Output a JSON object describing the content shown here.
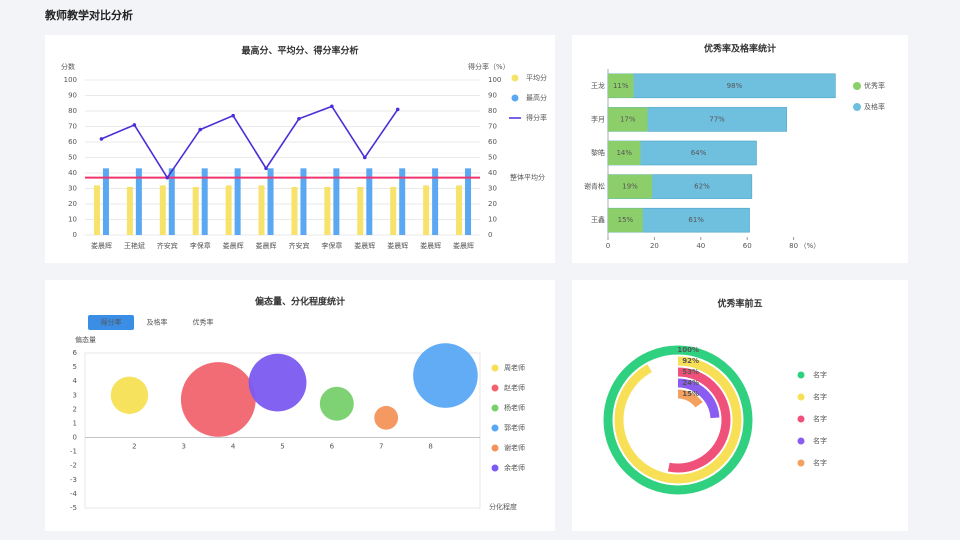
{
  "header": {
    "title": "教师教学对比分析"
  },
  "chart_data": [
    {
      "type": "combo",
      "title": "最高分、平均分、得分率分析",
      "y_label": "分数",
      "y2_label": "得分率（%）",
      "categories": [
        "娄晨辉",
        "王艳斌",
        "齐安宾",
        "李保章",
        "娄晨辉",
        "娄晨辉",
        "齐安宾",
        "李保章",
        "娄晨辉",
        "娄晨辉",
        "娄晨辉",
        "娄晨辉"
      ],
      "ylim": [
        0,
        100
      ],
      "yticks": [
        0,
        10,
        20,
        30,
        40,
        50,
        60,
        70,
        80,
        90,
        100
      ],
      "y2lim": [
        0,
        100
      ],
      "y2ticks": [
        0,
        10,
        20,
        30,
        40,
        50,
        60,
        70,
        80,
        90,
        100
      ],
      "grid": true,
      "legend": "right",
      "series": [
        {
          "name": "平均分",
          "kind": "bar",
          "color": "#f7e26b",
          "values": [
            32,
            31,
            32,
            31,
            32,
            32,
            31,
            31,
            31,
            31,
            32,
            32
          ]
        },
        {
          "name": "最高分",
          "kind": "bar",
          "color": "#5aa8f2",
          "values": [
            43,
            43,
            43,
            43,
            43,
            43,
            43,
            43,
            43,
            43,
            43,
            43
          ]
        },
        {
          "name": "得分率",
          "kind": "line",
          "axis": "y2",
          "color": "#4a2fd8",
          "values": [
            62,
            71,
            37,
            68,
            77,
            43,
            75,
            83,
            50,
            81,
            null,
            null
          ]
        }
      ],
      "reference_line": {
        "label": "整体平均分",
        "value": 37,
        "color": "#f0356f"
      }
    },
    {
      "type": "hbar",
      "title": "优秀率及格率统计",
      "categories": [
        "王龙",
        "李月",
        "黎皓",
        "谢青松",
        "王鑫"
      ],
      "xlim": [
        0,
        100
      ],
      "xticks": [
        0,
        20,
        40,
        60,
        80
      ],
      "x_unit": "（%）",
      "legend": "right",
      "series": [
        {
          "name": "优秀率",
          "color": "#8ccf6a",
          "values": [
            11,
            17,
            14,
            19,
            15
          ],
          "value_labels": [
            "11%",
            "17%",
            "14%",
            "19%",
            "15%"
          ]
        },
        {
          "name": "及格率",
          "color": "#6fbfdf",
          "values": [
            98,
            77,
            64,
            62,
            61
          ],
          "value_labels": [
            "98%",
            "77%",
            "64%",
            "62%",
            "61%"
          ]
        }
      ]
    },
    {
      "type": "bubble",
      "title": "偏态量、分化程度统计",
      "tabs": [
        "得分率",
        "及格率",
        "优秀率"
      ],
      "active_tab": 0,
      "y_label": "偏态量",
      "x_label": "分化程度",
      "xlim": [
        1,
        9
      ],
      "xticks": [
        2,
        3,
        4,
        5,
        6,
        7,
        8
      ],
      "ylim": [
        -5,
        6
      ],
      "yticks": [
        -5,
        -4,
        -3,
        -2,
        -1,
        0,
        1,
        2,
        3,
        4,
        5,
        6
      ],
      "series": [
        {
          "name": "周老师",
          "color": "#f7e055",
          "x": [
            1.9
          ],
          "values": [
            3.0
          ],
          "sizes": [
            11
          ]
        },
        {
          "name": "赵老师",
          "color": "#f1646f",
          "x": [
            3.7
          ],
          "values": [
            2.7
          ],
          "sizes": [
            22
          ]
        },
        {
          "name": "杨老师",
          "color": "#78d06b",
          "x": [
            6.1
          ],
          "values": [
            2.4
          ],
          "sizes": [
            10
          ]
        },
        {
          "name": "郭老师",
          "color": "#5aa8f5",
          "x": [
            8.3
          ],
          "values": [
            4.4
          ],
          "sizes": [
            19
          ]
        },
        {
          "name": "谢老师",
          "color": "#f4935a",
          "x": [
            7.1
          ],
          "values": [
            1.4
          ],
          "sizes": [
            7
          ]
        },
        {
          "name": "余老师",
          "color": "#7b5bf0",
          "x": [
            4.9
          ],
          "values": [
            3.9
          ],
          "sizes": [
            17
          ]
        }
      ]
    },
    {
      "type": "radial",
      "title": "优秀率前五",
      "series": [
        {
          "name": "名字",
          "color": "#2fd07f",
          "value": 100,
          "value_label": "100%"
        },
        {
          "name": "名字",
          "color": "#f7e055",
          "value": 92,
          "value_label": "92%"
        },
        {
          "name": "名字",
          "color": "#f0517a",
          "value": 53,
          "value_label": "53%"
        },
        {
          "name": "名字",
          "color": "#8a5cf2",
          "value": 24,
          "value_label": "24%"
        },
        {
          "name": "名字",
          "color": "#f4a05e",
          "value": 15,
          "value_label": "15%"
        }
      ]
    }
  ]
}
